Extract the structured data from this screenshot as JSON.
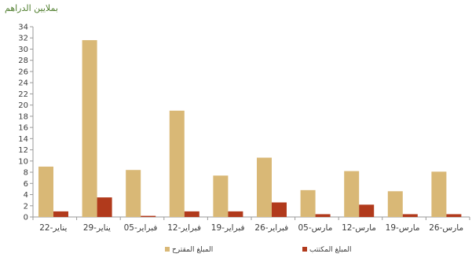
{
  "chart_data": {
    "type": "bar",
    "unit_label": "بملايين الدراهم",
    "categories": [
      "22-يناير",
      "29-يناير",
      "05-فبراير",
      "12-فبراير",
      "19-فبراير",
      "26-فبراير",
      "05-مارس",
      "12-مارس",
      "19-مارس",
      "26-مارس"
    ],
    "series": [
      {
        "name": "المبلغ المقترح",
        "color": "#d9b876",
        "values": [
          9.0,
          31.6,
          8.4,
          19.0,
          7.4,
          10.6,
          4.8,
          8.2,
          4.6,
          8.1
        ]
      },
      {
        "name": "المبلغ المكتتب",
        "color": "#b13a1c",
        "values": [
          1.0,
          3.5,
          0.2,
          1.0,
          1.0,
          2.6,
          0.5,
          2.2,
          0.5,
          0.5
        ]
      }
    ],
    "yticks": [
      0,
      2,
      4,
      6,
      8,
      10,
      12,
      14,
      16,
      18,
      20,
      22,
      24,
      26,
      28,
      30,
      32,
      34
    ],
    "ylim": [
      0,
      34
    ],
    "grid": false,
    "legend_position": "bottom"
  }
}
